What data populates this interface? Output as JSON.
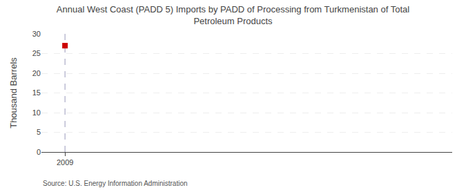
{
  "chart_data": {
    "type": "scatter",
    "title": "Annual West Coast (PADD 5) Imports by PADD of Processing from Turkmenistan of Total\nPetroleum Products",
    "ylabel": "Thousand Barrels",
    "annotation": "Source: U.S. Energy Information Administration",
    "x": [
      2009
    ],
    "values": [
      27
    ],
    "color": "#cc0000",
    "marker": "square",
    "xlim": [
      2008.3,
      2020.5
    ],
    "xticks": [
      2009
    ],
    "ylim": [
      0,
      30
    ],
    "yticks": [
      0,
      5,
      10,
      15,
      20,
      25,
      30
    ],
    "grid": true,
    "vline": 2009
  }
}
